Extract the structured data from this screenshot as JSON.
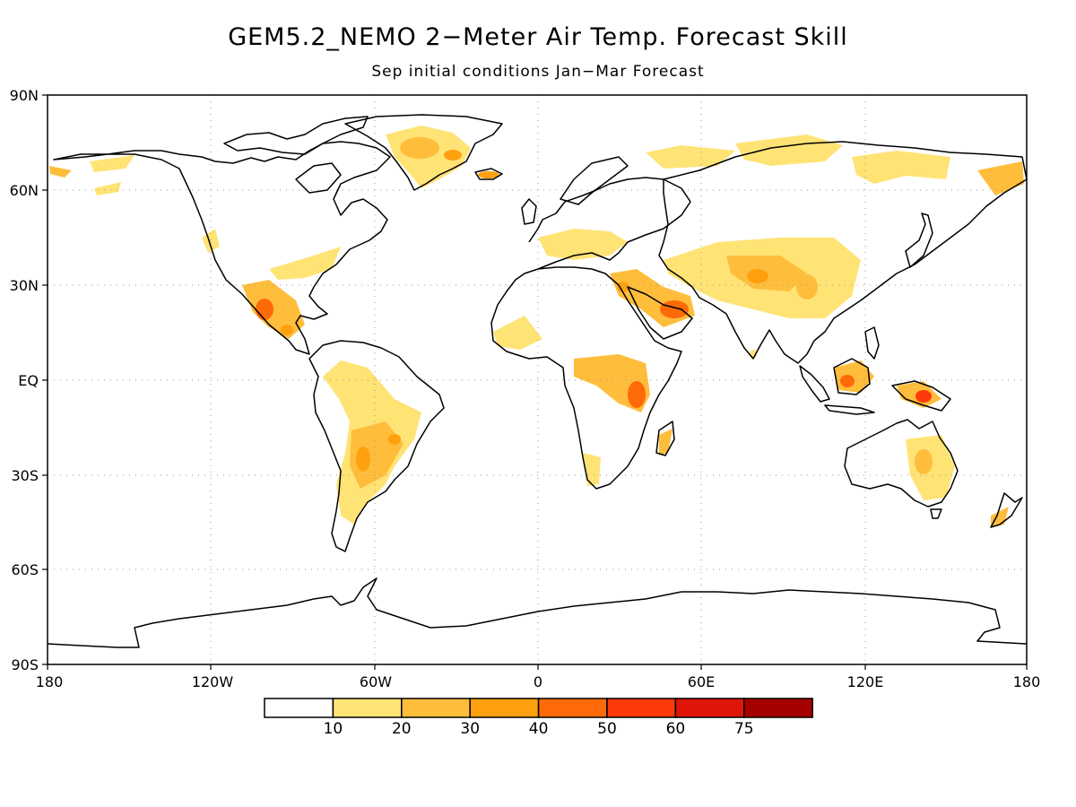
{
  "title": "GEM5.2_NEMO 2−Meter Air Temp. Forecast Skill",
  "subtitle": "Sep initial conditions   Jan−Mar Forecast",
  "lat_labels": [
    "90N",
    "60N",
    "30N",
    "EQ",
    "30S",
    "60S",
    "90S"
  ],
  "lon_labels": [
    "180",
    "120W",
    "60W",
    "0",
    "60E",
    "120E",
    "180"
  ],
  "legend": {
    "labels": [
      "10",
      "20",
      "30",
      "40",
      "50",
      "60",
      "75"
    ],
    "colors": [
      "#ffffff",
      "#ffe375",
      "#ffbd3c",
      "#ffa00f",
      "#ff6a08",
      "#ff3a0a",
      "#e0150a",
      "#a50000"
    ]
  },
  "colors": {
    "coast": "#000000",
    "grid": "#9a9a9a"
  }
}
